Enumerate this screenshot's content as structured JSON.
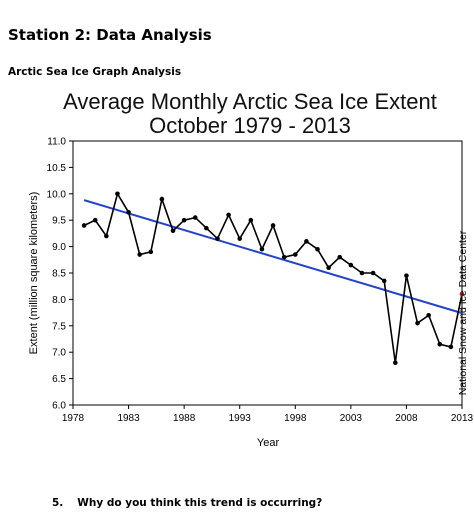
{
  "header": {
    "station_title": "Station 2: Data Analysis",
    "section_title": "Arctic Sea Ice Graph Analysis"
  },
  "question": {
    "number": "5.",
    "text": "Why do you think this trend is occurring?"
  },
  "chart_data": {
    "type": "line",
    "title_line1": "Average Monthly Arctic Sea Ice Extent",
    "title_line2": "October 1979 - 2013",
    "xlabel": "Year",
    "ylabel": "Extent (million square kilometers)",
    "credit": "National Snow and Ice Data Center",
    "xlim": [
      1978,
      2013
    ],
    "ylim": [
      6.0,
      11.0
    ],
    "x_ticks": [
      1978,
      1983,
      1988,
      1993,
      1998,
      2003,
      2008,
      2013
    ],
    "y_ticks": [
      "6.0",
      "6.5",
      "7.0",
      "7.5",
      "8.0",
      "8.5",
      "9.0",
      "9.5",
      "10.0",
      "10.5",
      "11.0"
    ],
    "grid": false,
    "series": [
      {
        "x": [
          1979,
          1980,
          1981,
          1982,
          1983,
          1984,
          1985,
          1986,
          1987,
          1988,
          1989,
          1990,
          1991,
          1992,
          1993,
          1994,
          1995,
          1996,
          1997,
          1998,
          1999,
          2000,
          2001,
          2002,
          2003,
          2004,
          2005,
          2006,
          2007,
          2008,
          2009,
          2010,
          2011,
          2012,
          2013
        ],
        "values": [
          9.4,
          9.5,
          9.2,
          10.0,
          9.65,
          8.85,
          8.9,
          9.9,
          9.3,
          9.5,
          9.55,
          9.35,
          9.15,
          9.6,
          9.15,
          9.5,
          8.95,
          9.4,
          8.8,
          8.85,
          9.1,
          8.95,
          8.6,
          8.8,
          8.65,
          8.5,
          8.5,
          8.35,
          6.8,
          8.45,
          7.55,
          7.7,
          7.15,
          7.1,
          8.1
        ],
        "color": "#000000",
        "last_point_color": "#cc2200"
      },
      {
        "type": "trend",
        "x": [
          1979,
          2013
        ],
        "values": [
          9.88,
          7.74
        ],
        "color": "#2244cc"
      }
    ]
  }
}
